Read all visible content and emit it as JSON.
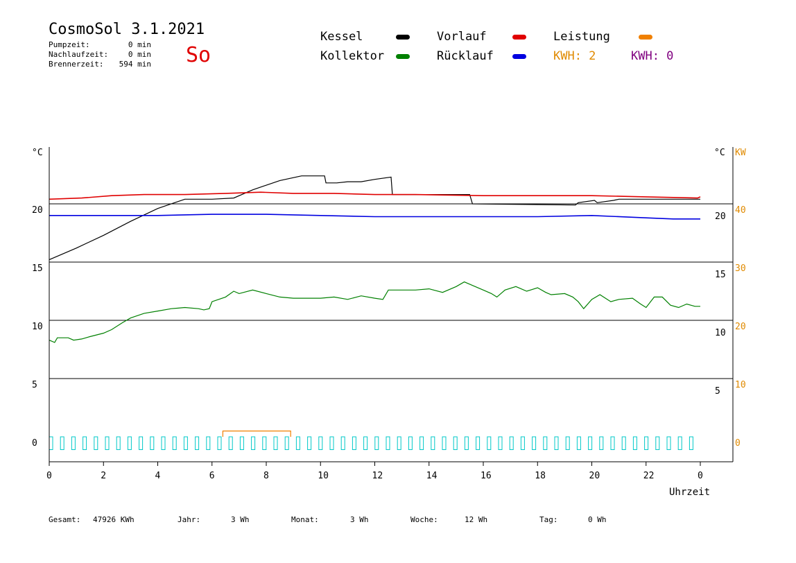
{
  "header": {
    "title": "CosmoSol 3.1.2021",
    "day": "So",
    "stats": [
      {
        "label": "Pumpzeit:",
        "value": "0 min"
      },
      {
        "label": "Nachlaufzeit:",
        "value": "0 min"
      },
      {
        "label": "Brennerzeit:",
        "value": "594 min"
      }
    ]
  },
  "legend": {
    "kessel": {
      "label": "Kessel",
      "color": "#000000"
    },
    "kollektor": {
      "label": "Kollektor",
      "color": "#008000"
    },
    "vorlauf": {
      "label": "Vorlauf",
      "color": "#e00000"
    },
    "ruecklauf": {
      "label": "Rücklauf",
      "color": "#0000e0"
    },
    "leistung": {
      "label": "Leistung",
      "color": "#f08000"
    },
    "kwh_orange": "KWH: 2",
    "kwh_purple": "KWH: 0",
    "kwh_orange_color": "#e08a00",
    "kwh_purple_color": "#800080"
  },
  "footer": {
    "gesamt_label": "Gesamt:",
    "gesamt_value": "47926 KWh",
    "jahr_label": "Jahr:",
    "jahr_value": "3 Wh",
    "monat_label": "Monat:",
    "monat_value": "3 Wh",
    "woche_label": "Woche:",
    "woche_value": "12 Wh",
    "tag_label": "Tag:",
    "tag_value": "0 Wh"
  },
  "chart_data": {
    "type": "line",
    "xlabel": "Uhrzeit",
    "x_ticks": [
      "0",
      "2",
      "4",
      "6",
      "8",
      "10",
      "12",
      "14",
      "16",
      "18",
      "20",
      "22",
      "0"
    ],
    "xlim": [
      0,
      24
    ],
    "left_unit": "°C",
    "right_unit": "°C",
    "right_unit_kw": "KW",
    "left_ticks": [
      "0",
      "5",
      "10",
      "15",
      "20"
    ],
    "right_ticks": [
      "5",
      "10",
      "15",
      "20"
    ],
    "kw_ticks": [
      "0",
      "10",
      "20",
      "30",
      "40"
    ],
    "ylim": [
      -1,
      25
    ],
    "gridlines": [
      5,
      10,
      15,
      20
    ],
    "series": [
      {
        "name": "Kessel",
        "color": "#000000",
        "points": [
          [
            0,
            15.2
          ],
          [
            1,
            16.2
          ],
          [
            2,
            17.3
          ],
          [
            3,
            18.5
          ],
          [
            4,
            19.6
          ],
          [
            5,
            20.4
          ],
          [
            6,
            20.4
          ],
          [
            6.8,
            20.5
          ],
          [
            7.5,
            21.2
          ],
          [
            8.5,
            22.0
          ],
          [
            9.3,
            22.4
          ],
          [
            10.15,
            22.4
          ],
          [
            10.2,
            21.8
          ],
          [
            10.6,
            21.8
          ],
          [
            11,
            21.9
          ],
          [
            11.5,
            21.9
          ],
          [
            12,
            22.1
          ],
          [
            12.6,
            22.3
          ],
          [
            12.65,
            20.8
          ],
          [
            15.5,
            20.8
          ],
          [
            15.6,
            20.0
          ],
          [
            19.4,
            19.9
          ],
          [
            19.5,
            20.1
          ],
          [
            20.1,
            20.3
          ],
          [
            20.2,
            20.1
          ],
          [
            20.8,
            20.3
          ],
          [
            21,
            20.4
          ],
          [
            24,
            20.4
          ]
        ]
      },
      {
        "name": "Vorlauf",
        "color": "#e00000",
        "points": [
          [
            0,
            20.4
          ],
          [
            1.2,
            20.5
          ],
          [
            2.3,
            20.7
          ],
          [
            3.5,
            20.8
          ],
          [
            5,
            20.8
          ],
          [
            6.5,
            20.9
          ],
          [
            7.8,
            21.0
          ],
          [
            9,
            20.9
          ],
          [
            10.5,
            20.9
          ],
          [
            12,
            20.8
          ],
          [
            13.5,
            20.8
          ],
          [
            16,
            20.7
          ],
          [
            18,
            20.7
          ],
          [
            20,
            20.7
          ],
          [
            22,
            20.6
          ],
          [
            23.9,
            20.5
          ],
          [
            24,
            20.6
          ]
        ]
      },
      {
        "name": "Rücklauf",
        "color": "#0000e0",
        "points": [
          [
            0,
            19.0
          ],
          [
            2,
            19.0
          ],
          [
            4,
            19.0
          ],
          [
            6,
            19.1
          ],
          [
            8,
            19.1
          ],
          [
            10,
            19.0
          ],
          [
            12,
            18.9
          ],
          [
            14,
            18.9
          ],
          [
            16,
            18.9
          ],
          [
            18,
            18.9
          ],
          [
            20,
            19.0
          ],
          [
            22,
            18.8
          ],
          [
            23,
            18.7
          ],
          [
            24,
            18.7
          ]
        ]
      },
      {
        "name": "Kollektor",
        "color": "#008000",
        "points": [
          [
            0,
            8.3
          ],
          [
            0.2,
            8.1
          ],
          [
            0.3,
            8.5
          ],
          [
            0.7,
            8.5
          ],
          [
            0.9,
            8.3
          ],
          [
            1.2,
            8.4
          ],
          [
            1.5,
            8.6
          ],
          [
            2,
            8.9
          ],
          [
            2.3,
            9.2
          ],
          [
            2.7,
            9.8
          ],
          [
            3,
            10.2
          ],
          [
            3.5,
            10.6
          ],
          [
            4,
            10.8
          ],
          [
            4.5,
            11.0
          ],
          [
            5,
            11.1
          ],
          [
            5.5,
            11.0
          ],
          [
            5.7,
            10.9
          ],
          [
            5.9,
            11.0
          ],
          [
            6,
            11.6
          ],
          [
            6.5,
            12.0
          ],
          [
            6.8,
            12.5
          ],
          [
            7,
            12.3
          ],
          [
            7.5,
            12.6
          ],
          [
            8,
            12.3
          ],
          [
            8.5,
            12.0
          ],
          [
            9,
            11.9
          ],
          [
            9.5,
            11.9
          ],
          [
            10,
            11.9
          ],
          [
            10.5,
            12.0
          ],
          [
            11,
            11.8
          ],
          [
            11.5,
            12.1
          ],
          [
            12,
            11.9
          ],
          [
            12.3,
            11.8
          ],
          [
            12.5,
            12.6
          ],
          [
            13,
            12.6
          ],
          [
            13.5,
            12.6
          ],
          [
            14,
            12.7
          ],
          [
            14.5,
            12.4
          ],
          [
            15,
            12.9
          ],
          [
            15.3,
            13.3
          ],
          [
            15.7,
            12.9
          ],
          [
            16,
            12.6
          ],
          [
            16.3,
            12.3
          ],
          [
            16.5,
            12.0
          ],
          [
            16.8,
            12.6
          ],
          [
            17.2,
            12.9
          ],
          [
            17.6,
            12.5
          ],
          [
            18,
            12.8
          ],
          [
            18.3,
            12.4
          ],
          [
            18.5,
            12.2
          ],
          [
            19,
            12.3
          ],
          [
            19.3,
            12.0
          ],
          [
            19.5,
            11.6
          ],
          [
            19.7,
            11.0
          ],
          [
            20,
            11.8
          ],
          [
            20.3,
            12.2
          ],
          [
            20.7,
            11.6
          ],
          [
            21,
            11.8
          ],
          [
            21.5,
            11.9
          ],
          [
            21.8,
            11.4
          ],
          [
            22,
            11.1
          ],
          [
            22.3,
            12.0
          ],
          [
            22.6,
            12.0
          ],
          [
            22.9,
            11.3
          ],
          [
            23.2,
            11.1
          ],
          [
            23.5,
            11.4
          ],
          [
            23.8,
            11.2
          ],
          [
            24,
            11.2
          ]
        ]
      },
      {
        "name": "Leistung",
        "color": "#f08000",
        "points": [
          [
            6.4,
            0
          ],
          [
            6.4,
            0.5
          ],
          [
            8.9,
            0.5
          ],
          [
            8.9,
            0
          ]
        ]
      }
    ]
  }
}
